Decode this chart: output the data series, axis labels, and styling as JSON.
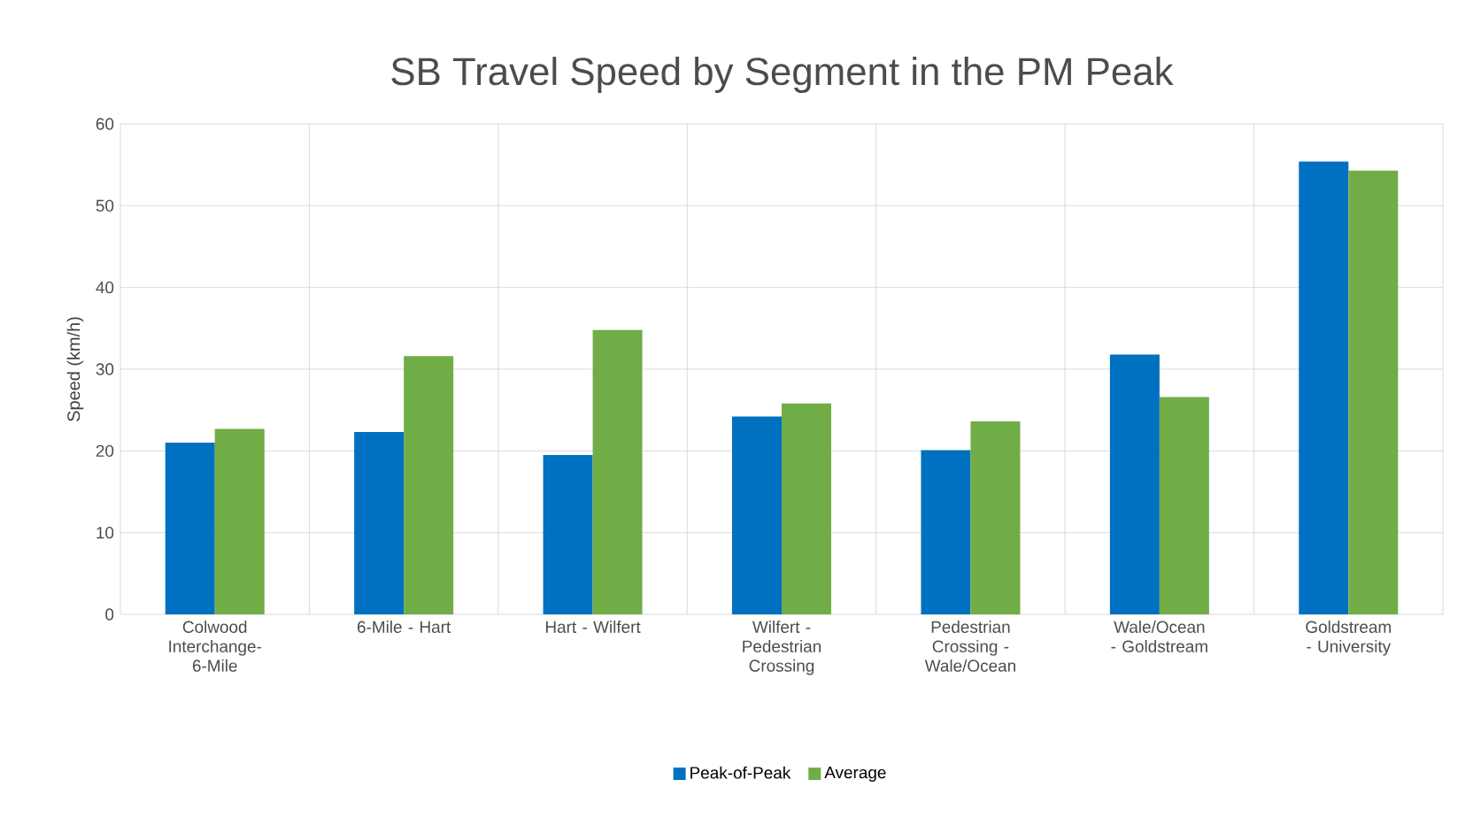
{
  "chart_data": {
    "type": "bar",
    "title": "SB Travel Speed by Segment in the PM Peak",
    "ylabel": "Speed (km/h)",
    "categories": [
      "Colwood Interchange- 6-Mile",
      "6-Mile - Hart",
      "Hart - Wilfert",
      "Wilfert - Pedestrian Crossing",
      "Pedestrian Crossing - Wale/Ocean",
      "Wale/Ocean - Goldstream",
      "Goldstream - University"
    ],
    "series": [
      {
        "name": "Peak-of-Peak",
        "color": "#0070c0",
        "values": [
          21.0,
          22.3,
          19.5,
          24.2,
          20.1,
          31.8,
          55.4
        ]
      },
      {
        "name": "Average",
        "color": "#70ad47",
        "values": [
          22.7,
          31.6,
          34.8,
          25.8,
          23.6,
          26.6,
          54.3
        ]
      }
    ],
    "ylim": [
      0,
      60
    ],
    "yticks": [
      0,
      10,
      20,
      30,
      40,
      50,
      60
    ],
    "grid": true,
    "legend": "bottom"
  }
}
